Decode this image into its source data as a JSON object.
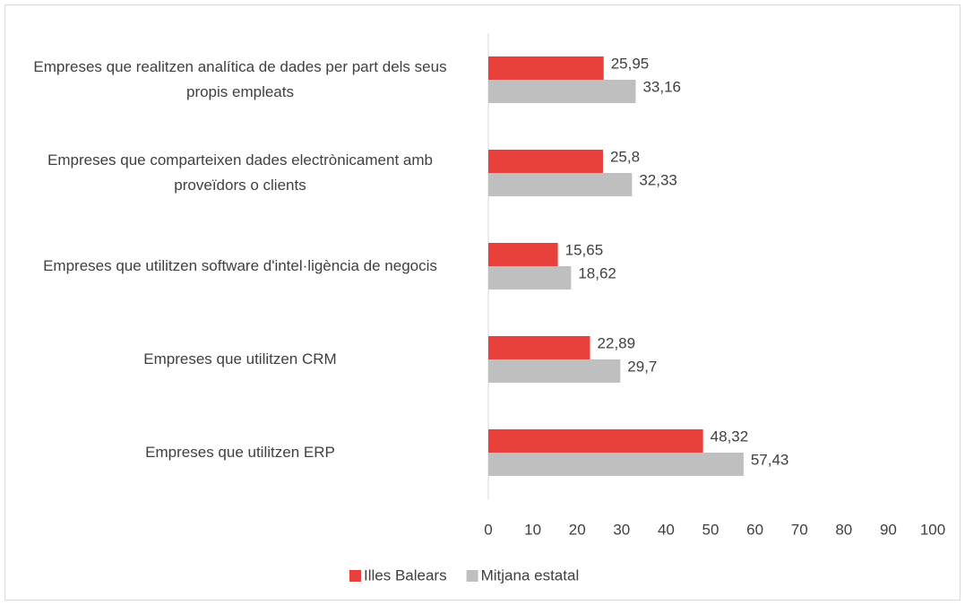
{
  "chart_data": {
    "type": "hbar",
    "categories": [
      "Empreses que realitzen analítica de dades per part dels seus propis empleats",
      "Empreses que comparteixen dades electrònicament amb proveïdors o clients",
      "Empreses que utilitzen software d'intel·ligència de negocis",
      "Empreses que utilitzen CRM",
      "Empreses que utilitzen ERP"
    ],
    "series": [
      {
        "name": "Illes Balears",
        "color": "#e8403a",
        "values": [
          25.95,
          25.8,
          15.65,
          22.89,
          48.32
        ],
        "value_labels": [
          "25,95",
          "25,8",
          "15,65",
          "22,89",
          "48,32"
        ]
      },
      {
        "name": "Mitjana estatal",
        "color": "#bfbfbf",
        "values": [
          33.16,
          32.33,
          18.62,
          29.7,
          57.43
        ],
        "value_labels": [
          "33,16",
          "32,33",
          "18,62",
          "29,7",
          "57,43"
        ]
      }
    ],
    "xlim": [
      0,
      100
    ],
    "xticks": [
      0,
      10,
      20,
      30,
      40,
      50,
      60,
      70,
      80,
      90,
      100
    ]
  }
}
